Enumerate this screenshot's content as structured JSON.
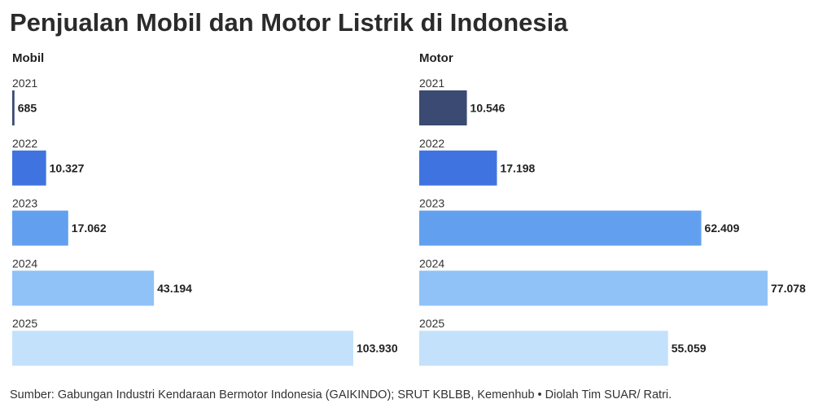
{
  "title": "Penjualan Mobil dan Motor Listrik di Indonesia",
  "source": "Sumber: Gabungan Industri Kendaraan Bermotor Indonesia (GAIKINDO); SRUT KBLBB, Kemenhub • Diolah Tim SUAR/ Ratri.",
  "colors": {
    "2021": "#3a4a72",
    "2022": "#3f74e0",
    "2023": "#62a0ef",
    "2024": "#90c2f7",
    "2025": "#c4e1fc"
  },
  "chart_data": [
    {
      "type": "bar",
      "orientation": "horizontal",
      "panel_title": "Mobil",
      "categories": [
        "2021",
        "2022",
        "2023",
        "2024",
        "2025"
      ],
      "values": [
        685,
        10327,
        17062,
        43194,
        103930
      ],
      "value_labels": [
        "685",
        "10.327",
        "17.062",
        "43.194",
        "103.930"
      ],
      "xlim": [
        0,
        103930
      ]
    },
    {
      "type": "bar",
      "orientation": "horizontal",
      "panel_title": "Motor",
      "categories": [
        "2021",
        "2022",
        "2023",
        "2024",
        "2025"
      ],
      "values": [
        10546,
        17198,
        62409,
        77078,
        55059
      ],
      "value_labels": [
        "10.546",
        "17.198",
        "62.409",
        "77.078",
        "55.059"
      ],
      "xlim": [
        0,
        77078
      ]
    }
  ]
}
